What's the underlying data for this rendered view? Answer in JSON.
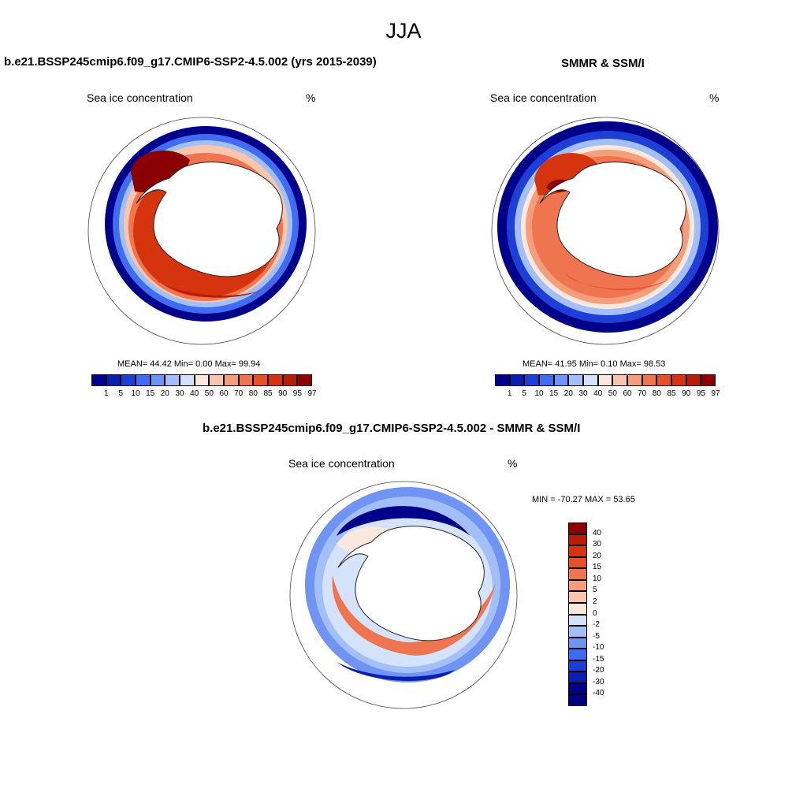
{
  "title": "JJA",
  "panels": [
    {
      "title": "b.e21.BSSP245cmip6.f09_g17.CMIP6-SSP2-4.5.002 (yrs 2015-2039)",
      "variable": "Sea ice concentration",
      "units": "%",
      "stats": {
        "mean": "44.42",
        "min": "0.00",
        "max": "99.94"
      }
    },
    {
      "title": "SMMR & SSM/I",
      "variable": "Sea ice concentration",
      "units": "%",
      "stats": {
        "mean": "41.95",
        "min": "0.10",
        "max": "98.53"
      }
    },
    {
      "title": "b.e21.BSSP245cmip6.f09_g17.CMIP6-SSP2-4.5.002 - SMMR & SSM/I",
      "variable": "Sea ice concentration",
      "units": "%",
      "stats_text": "MIN = -70.27 MAX =  53.65"
    }
  ],
  "stat_labels": {
    "mean": "MEAN=",
    "min": "Min=",
    "max": "Max="
  },
  "colorbar_conc": {
    "levels": [
      "1",
      "5",
      "10",
      "15",
      "20",
      "30",
      "40",
      "50",
      "60",
      "70",
      "80",
      "85",
      "90",
      "95",
      "97"
    ],
    "colors": [
      "#00008b",
      "#0a1fb0",
      "#1d3fd6",
      "#3f6cf0",
      "#6f94f4",
      "#a3bff7",
      "#d4e2fa",
      "#fbe8dc",
      "#f7c6ad",
      "#f49e7c",
      "#ef7550",
      "#e8502a",
      "#d5340f",
      "#b81d08",
      "#8b0000"
    ]
  },
  "colorbar_diff": {
    "levels": [
      "40",
      "30",
      "20",
      "15",
      "10",
      "5",
      "2",
      "0",
      "-2",
      "-5",
      "-10",
      "-15",
      "-20",
      "-30",
      "-40"
    ],
    "colors": [
      "#8b0000",
      "#b81d08",
      "#d5340f",
      "#e8502a",
      "#ef7550",
      "#f49e7c",
      "#f7c6ad",
      "#fbe8dc",
      "#d4e2fa",
      "#a3bff7",
      "#6f94f4",
      "#3f6cf0",
      "#1d3fd6",
      "#0a1fb0",
      "#00008b",
      "#000080"
    ]
  },
  "colors": {
    "ice_dark": "#8b0000",
    "ice_red": "#d5340f",
    "ice_orange": "#ef7550",
    "ice_pale": "#fbe8dc",
    "water_pale": "#d4e2fa",
    "water_blue": "#3f6cf0",
    "water_dark": "#00008b"
  }
}
